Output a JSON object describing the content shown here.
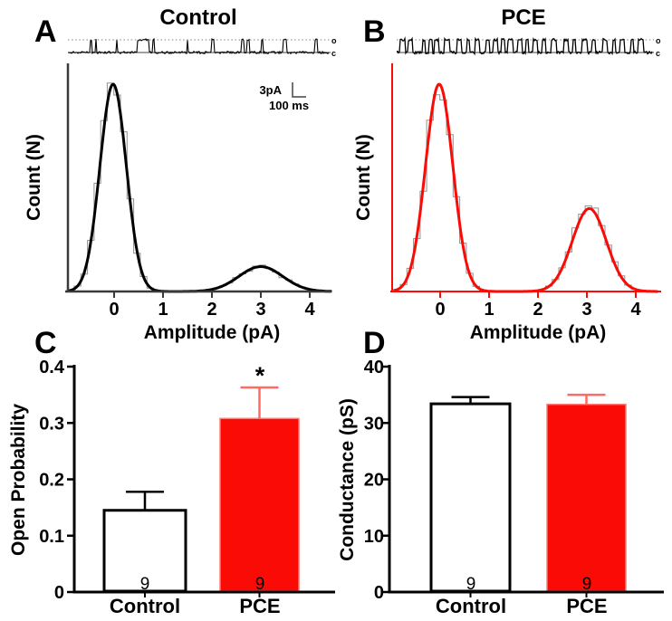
{
  "panel_letters": [
    "A",
    "B",
    "C",
    "D"
  ],
  "colors": {
    "control_fill": "#ffffff",
    "pce_fill": "#FA0B06",
    "pce_error": "#FF6B63",
    "red_axis": "#FA0B06",
    "dark_axis": "#3A3A3A",
    "histogram_steps": "#8F8F8F",
    "trace": "#000000",
    "open_level_line": "#808080"
  },
  "chart_data": [
    {
      "id": "A",
      "type": "line",
      "subtype": "single_channel_amplitude_histogram_with_gaussian_fit",
      "title": "Control",
      "xlabel": "Amplitude (pA)",
      "ylabel": "Count (N)",
      "xlim": [
        -0.95,
        4.45
      ],
      "xticks": [
        0,
        1,
        2,
        3,
        4
      ],
      "grid": false,
      "gaussian_peaks": [
        {
          "center_pA": -0.02,
          "sigma_pA": 0.27,
          "relative_height": 1.0
        },
        {
          "center_pA": 3.0,
          "sigma_pA": 0.45,
          "relative_height": 0.12
        }
      ],
      "curve_color": "#000000",
      "trace": {
        "open_label": "o",
        "closed_label": "c",
        "open_level_pA": 3,
        "open_events": [
          [
            0.085,
            0.008
          ],
          [
            0.105,
            0.006
          ],
          [
            0.185,
            0.005
          ],
          [
            0.265,
            0.045
          ],
          [
            0.325,
            0.008
          ],
          [
            0.455,
            0.005
          ],
          [
            0.55,
            0.01
          ],
          [
            0.665,
            0.012
          ],
          [
            0.685,
            0.01
          ],
          [
            0.74,
            0.008
          ],
          [
            0.825,
            0.015
          ],
          [
            0.945,
            0.012
          ]
        ]
      },
      "scalebar": {
        "current": "3pA",
        "time": "100 ms"
      }
    },
    {
      "id": "B",
      "type": "line",
      "subtype": "single_channel_amplitude_histogram_with_gaussian_fit",
      "title": "PCE",
      "xlabel": "Amplitude (pA)",
      "ylabel": "Count (N)",
      "xlim": [
        -0.95,
        4.45
      ],
      "xticks": [
        0,
        1,
        2,
        3,
        4
      ],
      "grid": false,
      "gaussian_peaks": [
        {
          "center_pA": -0.02,
          "sigma_pA": 0.28,
          "relative_height": 1.0
        },
        {
          "center_pA": 3.05,
          "sigma_pA": 0.35,
          "relative_height": 0.4
        }
      ],
      "curve_color": "#FA0B06",
      "trace": {
        "open_label": "o",
        "closed_label": "c",
        "open_level_pA": 3,
        "open_events": [
          [
            0.012,
            0.02
          ],
          [
            0.045,
            0.018
          ],
          [
            0.1,
            0.012
          ],
          [
            0.125,
            0.014
          ],
          [
            0.148,
            0.016
          ],
          [
            0.185,
            0.022
          ],
          [
            0.235,
            0.018
          ],
          [
            0.275,
            0.012
          ],
          [
            0.305,
            0.02
          ],
          [
            0.35,
            0.014
          ],
          [
            0.378,
            0.016
          ],
          [
            0.41,
            0.012
          ],
          [
            0.435,
            0.02
          ],
          [
            0.475,
            0.016
          ],
          [
            0.505,
            0.012
          ],
          [
            0.535,
            0.018
          ],
          [
            0.57,
            0.014
          ],
          [
            0.605,
            0.02
          ],
          [
            0.655,
            0.016
          ],
          [
            0.69,
            0.012
          ],
          [
            0.725,
            0.02
          ],
          [
            0.765,
            0.014
          ],
          [
            0.805,
            0.018
          ],
          [
            0.845,
            0.012
          ],
          [
            0.875,
            0.016
          ],
          [
            0.915,
            0.014
          ],
          [
            0.945,
            0.02
          ]
        ]
      }
    },
    {
      "id": "C",
      "type": "bar",
      "categories": [
        "Control",
        "PCE"
      ],
      "values": [
        0.145,
        0.308
      ],
      "errors_up": [
        0.033,
        0.055
      ],
      "ylabel": "Open Probability",
      "ylim": [
        0,
        0.4
      ],
      "yticks": [
        "0",
        "0.1",
        "0.2",
        "0.3",
        "0.4"
      ],
      "n_per_bar": [
        "9",
        "9"
      ],
      "significance_labels": [
        "",
        "*"
      ],
      "bar_fills": [
        "#ffffff",
        "#FA0B06"
      ],
      "error_colors": [
        "#000000",
        "#FF6B63"
      ]
    },
    {
      "id": "D",
      "type": "bar",
      "categories": [
        "Control",
        "PCE"
      ],
      "values": [
        33.4,
        33.3
      ],
      "errors_up": [
        1.2,
        1.7
      ],
      "ylabel": "Conductance (pS)",
      "ylim": [
        0,
        40
      ],
      "yticks": [
        "0",
        "10",
        "20",
        "30",
        "40"
      ],
      "n_per_bar": [
        "9",
        "9"
      ],
      "significance_labels": [
        "",
        ""
      ],
      "bar_fills": [
        "#ffffff",
        "#FA0B06"
      ],
      "error_colors": [
        "#000000",
        "#FF6B63"
      ]
    }
  ]
}
